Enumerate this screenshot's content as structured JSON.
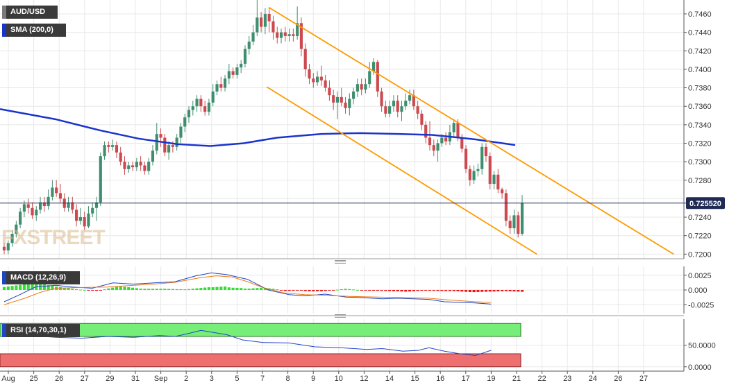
{
  "colors": {
    "up": "#3f8e6f",
    "down": "#cc4a4f",
    "sma": "#1a33cc",
    "channel": "#ff9a00",
    "macd": "#1f45c7",
    "signal": "#f07a18",
    "hist_up": "#33dd33",
    "hist_down": "#ee1111",
    "rsi": "#1f45c7",
    "rsi_upper": "#77ee77",
    "rsi_lower": "#ee6f6f",
    "price_line": "#1f2a55",
    "grid": "#e8e8e8"
  },
  "labels": {
    "symbol": "AUD/USD",
    "sma": "SMA (200,0)",
    "macd": "MACD (12,26,9)",
    "rsi": "RSI (14,70,30,1)",
    "price_tag": "0.725520",
    "watermark": "FXSTREET"
  },
  "chart_data": {
    "type": "candlestick",
    "price_axis": {
      "min": 0.7195,
      "max": 0.7475,
      "ticks": [
        "0.7200",
        "0.7220",
        "0.7240",
        "0.7260",
        "0.7280",
        "0.7300",
        "0.7320",
        "0.7340",
        "0.7360",
        "0.7380",
        "0.7400",
        "0.7420",
        "0.7440",
        "0.7460"
      ]
    },
    "macd_axis": {
      "min": -0.004,
      "max": 0.004,
      "ticks": [
        "0.0025",
        "0.000",
        "-0.0025"
      ]
    },
    "rsi_axis": {
      "min": -10,
      "max": 110,
      "ticks": [
        "50.0000",
        "0.0000"
      ]
    },
    "x_labels": [
      "Aug",
      "25",
      "26",
      "27",
      "29",
      "31",
      "Sep",
      "2",
      "3",
      "5",
      "7",
      "8",
      "9",
      "10",
      "12",
      "14",
      "15",
      "16",
      "17",
      "19",
      "21",
      "22",
      "23",
      "24",
      "26",
      "27"
    ],
    "last_price": 0.72552,
    "candles": [
      [
        0.7208,
        0.7204,
        0.7212,
        0.72
      ],
      [
        0.7204,
        0.7212,
        0.7215,
        0.72
      ],
      [
        0.7212,
        0.7222,
        0.7226,
        0.7208
      ],
      [
        0.7222,
        0.7232,
        0.7236,
        0.7218
      ],
      [
        0.7232,
        0.7246,
        0.725,
        0.7228
      ],
      [
        0.7246,
        0.7254,
        0.7258,
        0.724
      ],
      [
        0.7254,
        0.725,
        0.726,
        0.7244
      ],
      [
        0.725,
        0.7242,
        0.7256,
        0.7238
      ],
      [
        0.7242,
        0.7248,
        0.7252,
        0.7236
      ],
      [
        0.7248,
        0.7256,
        0.7262,
        0.7244
      ],
      [
        0.7256,
        0.7252,
        0.7262,
        0.7246
      ],
      [
        0.7252,
        0.7262,
        0.727,
        0.7248
      ],
      [
        0.7262,
        0.7272,
        0.728,
        0.7258
      ],
      [
        0.7272,
        0.7266,
        0.728,
        0.7262
      ],
      [
        0.7266,
        0.726,
        0.7276,
        0.7256
      ],
      [
        0.726,
        0.725,
        0.7266,
        0.7246
      ],
      [
        0.725,
        0.7256,
        0.7262,
        0.7246
      ],
      [
        0.7256,
        0.7248,
        0.7262,
        0.7244
      ],
      [
        0.7248,
        0.7236,
        0.7254,
        0.723
      ],
      [
        0.7236,
        0.724,
        0.725,
        0.7232
      ],
      [
        0.724,
        0.723,
        0.7246,
        0.7226
      ],
      [
        0.723,
        0.7244,
        0.7252,
        0.7228
      ],
      [
        0.7244,
        0.725,
        0.7256,
        0.724
      ],
      [
        0.725,
        0.7256,
        0.7262,
        0.7236
      ],
      [
        0.7256,
        0.7306,
        0.731,
        0.7252
      ],
      [
        0.7306,
        0.7318,
        0.7322,
        0.7302
      ],
      [
        0.7318,
        0.7316,
        0.7322,
        0.731
      ],
      [
        0.7316,
        0.7318,
        0.7324,
        0.7312
      ],
      [
        0.7318,
        0.731,
        0.7322,
        0.7304
      ],
      [
        0.731,
        0.73,
        0.7316,
        0.7296
      ],
      [
        0.73,
        0.7292,
        0.7306,
        0.7286
      ],
      [
        0.7292,
        0.7296,
        0.73,
        0.7288
      ],
      [
        0.7296,
        0.7294,
        0.73,
        0.729
      ],
      [
        0.7294,
        0.73,
        0.7304,
        0.729
      ],
      [
        0.73,
        0.7296,
        0.7306,
        0.729
      ],
      [
        0.7296,
        0.729,
        0.73,
        0.7286
      ],
      [
        0.729,
        0.73,
        0.7304,
        0.7286
      ],
      [
        0.73,
        0.7312,
        0.7318,
        0.7296
      ],
      [
        0.7312,
        0.733,
        0.7342,
        0.7308
      ],
      [
        0.733,
        0.7326,
        0.7336,
        0.7316
      ],
      [
        0.7326,
        0.731,
        0.733,
        0.7306
      ],
      [
        0.731,
        0.7318,
        0.7322,
        0.7302
      ],
      [
        0.7318,
        0.7316,
        0.7322,
        0.731
      ],
      [
        0.7316,
        0.7326,
        0.733,
        0.7312
      ],
      [
        0.7326,
        0.7338,
        0.7342,
        0.732
      ],
      [
        0.7338,
        0.7348,
        0.7352,
        0.7332
      ],
      [
        0.7348,
        0.7356,
        0.736,
        0.7342
      ],
      [
        0.7356,
        0.736,
        0.7366,
        0.735
      ],
      [
        0.736,
        0.7368,
        0.7372,
        0.7354
      ],
      [
        0.7368,
        0.736,
        0.7372,
        0.7354
      ],
      [
        0.736,
        0.7354,
        0.7366,
        0.735
      ],
      [
        0.7354,
        0.7364,
        0.7368,
        0.735
      ],
      [
        0.7364,
        0.7376,
        0.7384,
        0.736
      ],
      [
        0.7376,
        0.7384,
        0.7388,
        0.7372
      ],
      [
        0.7384,
        0.738,
        0.7392,
        0.7376
      ],
      [
        0.738,
        0.739,
        0.7394,
        0.7376
      ],
      [
        0.739,
        0.7398,
        0.7406,
        0.7384
      ],
      [
        0.7398,
        0.7394,
        0.7402,
        0.739
      ],
      [
        0.7394,
        0.7402,
        0.7406,
        0.739
      ],
      [
        0.7402,
        0.7406,
        0.741,
        0.7396
      ],
      [
        0.7406,
        0.7422,
        0.7426,
        0.7402
      ],
      [
        0.7422,
        0.743,
        0.7436,
        0.7416
      ],
      [
        0.743,
        0.744,
        0.7448,
        0.7426
      ],
      [
        0.744,
        0.7456,
        0.7476,
        0.7436
      ],
      [
        0.7456,
        0.7446,
        0.7462,
        0.744
      ],
      [
        0.7446,
        0.746,
        0.7466,
        0.7438
      ],
      [
        0.746,
        0.7452,
        0.7466,
        0.744
      ],
      [
        0.7452,
        0.744,
        0.7458,
        0.7432
      ],
      [
        0.744,
        0.7434,
        0.7446,
        0.7428
      ],
      [
        0.7434,
        0.744,
        0.7444,
        0.7428
      ],
      [
        0.744,
        0.7436,
        0.7446,
        0.743
      ],
      [
        0.7436,
        0.7438,
        0.7444,
        0.743
      ],
      [
        0.7438,
        0.7436,
        0.7444,
        0.743
      ],
      [
        0.7436,
        0.745,
        0.7468,
        0.7432
      ],
      [
        0.745,
        0.7422,
        0.7456,
        0.7414
      ],
      [
        0.7422,
        0.74,
        0.7428,
        0.7392
      ],
      [
        0.74,
        0.739,
        0.7406,
        0.7384
      ],
      [
        0.739,
        0.7386,
        0.7396,
        0.738
      ],
      [
        0.7386,
        0.7392,
        0.7398,
        0.7382
      ],
      [
        0.7392,
        0.7388,
        0.7404,
        0.7382
      ],
      [
        0.7388,
        0.738,
        0.7394,
        0.7376
      ],
      [
        0.738,
        0.7372,
        0.7388,
        0.7366
      ],
      [
        0.7372,
        0.7364,
        0.7378,
        0.7356
      ],
      [
        0.7364,
        0.737,
        0.7376,
        0.7346
      ],
      [
        0.737,
        0.7364,
        0.738,
        0.736
      ],
      [
        0.7364,
        0.7358,
        0.737,
        0.7352
      ],
      [
        0.7358,
        0.7368,
        0.7374,
        0.735
      ],
      [
        0.7368,
        0.7376,
        0.738,
        0.7362
      ],
      [
        0.7376,
        0.7384,
        0.739,
        0.737
      ],
      [
        0.7384,
        0.7378,
        0.739,
        0.7372
      ],
      [
        0.7378,
        0.7384,
        0.739,
        0.7374
      ],
      [
        0.7384,
        0.7398,
        0.7408,
        0.738
      ],
      [
        0.7398,
        0.7408,
        0.7412,
        0.7394
      ],
      [
        0.7408,
        0.7376,
        0.741,
        0.737
      ],
      [
        0.7376,
        0.736,
        0.738,
        0.7354
      ],
      [
        0.736,
        0.7352,
        0.7366,
        0.7348
      ],
      [
        0.7352,
        0.736,
        0.7366,
        0.7348
      ],
      [
        0.736,
        0.7366,
        0.7372,
        0.7354
      ],
      [
        0.7366,
        0.7354,
        0.7372,
        0.7348
      ],
      [
        0.7354,
        0.736,
        0.7366,
        0.7344
      ],
      [
        0.736,
        0.7366,
        0.7374,
        0.7356
      ],
      [
        0.7366,
        0.7372,
        0.7378,
        0.7362
      ],
      [
        0.7372,
        0.736,
        0.7378,
        0.7356
      ],
      [
        0.736,
        0.7352,
        0.7366,
        0.7346
      ],
      [
        0.7352,
        0.734,
        0.7356,
        0.7334
      ],
      [
        0.734,
        0.7326,
        0.7344,
        0.732
      ],
      [
        0.7326,
        0.7318,
        0.7344,
        0.7312
      ],
      [
        0.7318,
        0.7312,
        0.7324,
        0.7306
      ],
      [
        0.7312,
        0.732,
        0.7324,
        0.73
      ],
      [
        0.732,
        0.7326,
        0.733,
        0.7316
      ],
      [
        0.7326,
        0.7322,
        0.7332,
        0.7318
      ],
      [
        0.7322,
        0.7332,
        0.734,
        0.7318
      ],
      [
        0.7332,
        0.7342,
        0.7346,
        0.7326
      ],
      [
        0.7342,
        0.7326,
        0.7346,
        0.7322
      ],
      [
        0.7326,
        0.7314,
        0.733,
        0.731
      ],
      [
        0.7314,
        0.7292,
        0.7318,
        0.7288
      ],
      [
        0.7292,
        0.728,
        0.7296,
        0.7274
      ],
      [
        0.728,
        0.729,
        0.7296,
        0.7276
      ],
      [
        0.729,
        0.7292,
        0.7298,
        0.7284
      ],
      [
        0.7292,
        0.7316,
        0.732,
        0.7286
      ],
      [
        0.7316,
        0.7306,
        0.732,
        0.73
      ],
      [
        0.7306,
        0.7276,
        0.731,
        0.727
      ],
      [
        0.7276,
        0.7286,
        0.729,
        0.727
      ],
      [
        0.7286,
        0.727,
        0.7292,
        0.7266
      ],
      [
        0.727,
        0.7266,
        0.7272,
        0.726
      ],
      [
        0.7266,
        0.7236,
        0.727,
        0.723
      ],
      [
        0.7236,
        0.7228,
        0.7242,
        0.7222
      ],
      [
        0.7228,
        0.7242,
        0.7248,
        0.7222
      ],
      [
        0.7242,
        0.7222,
        0.7246,
        0.7218
      ],
      [
        0.7222,
        0.72552,
        0.7264,
        0.722
      ]
    ],
    "sma200": [
      [
        0.7357,
        0
      ],
      [
        0.7346,
        0.1
      ],
      [
        0.7334,
        0.18
      ],
      [
        0.7325,
        0.25
      ],
      [
        0.7319,
        0.32
      ],
      [
        0.7317,
        0.38
      ],
      [
        0.732,
        0.44
      ],
      [
        0.7326,
        0.5
      ],
      [
        0.733,
        0.58
      ],
      [
        0.7331,
        0.65
      ],
      [
        0.733,
        0.72
      ],
      [
        0.7329,
        0.78
      ],
      [
        0.7326,
        0.83
      ],
      [
        0.7324,
        0.86
      ],
      [
        0.7318,
        0.93
      ]
    ],
    "channel_upper": [
      [
        0.7467,
        0.393
      ],
      [
        0.72,
        0.985
      ]
    ],
    "channel_lower": [
      [
        0.7381,
        0.39
      ],
      [
        0.72,
        0.785
      ]
    ],
    "macd": [
      [
        -0.002,
        0
      ],
      [
        -0.0008,
        0.03
      ],
      [
        0.0005,
        0.06
      ],
      [
        0.0008,
        0.1
      ],
      [
        0.0005,
        0.13
      ],
      [
        0.0003,
        0.17
      ],
      [
        0.0012,
        0.21
      ],
      [
        0.001,
        0.25
      ],
      [
        0.0012,
        0.29
      ],
      [
        0.0014,
        0.33
      ],
      [
        0.0024,
        0.37
      ],
      [
        0.0029,
        0.4
      ],
      [
        0.0026,
        0.43
      ],
      [
        0.0018,
        0.47
      ],
      [
        0.0,
        0.51
      ],
      [
        -0.0008,
        0.55
      ],
      [
        -0.001,
        0.58
      ],
      [
        -0.0007,
        0.62
      ],
      [
        -0.0012,
        0.66
      ],
      [
        -0.0013,
        0.69
      ],
      [
        -0.0015,
        0.73
      ],
      [
        -0.0014,
        0.76
      ],
      [
        -0.0015,
        0.79
      ],
      [
        -0.0016,
        0.82
      ],
      [
        -0.002,
        0.85
      ],
      [
        -0.0021,
        0.88
      ],
      [
        -0.0022,
        0.91
      ],
      [
        -0.0024,
        0.94
      ]
    ],
    "signal": [
      [
        -0.0025,
        0
      ],
      [
        -0.0014,
        0.04
      ],
      [
        -0.0004,
        0.07
      ],
      [
        0.0003,
        0.1
      ],
      [
        0.0004,
        0.14
      ],
      [
        0.0005,
        0.2
      ],
      [
        0.0008,
        0.25
      ],
      [
        0.001,
        0.29
      ],
      [
        0.0013,
        0.33
      ],
      [
        0.0021,
        0.38
      ],
      [
        0.0024,
        0.41
      ],
      [
        0.0022,
        0.44
      ],
      [
        0.0014,
        0.47
      ],
      [
        0.0004,
        0.5
      ],
      [
        -0.0005,
        0.54
      ],
      [
        -0.0008,
        0.58
      ],
      [
        -0.0009,
        0.62
      ],
      [
        -0.0011,
        0.67
      ],
      [
        -0.0012,
        0.72
      ],
      [
        -0.0013,
        0.77
      ],
      [
        -0.0014,
        0.82
      ],
      [
        -0.0017,
        0.86
      ],
      [
        -0.002,
        0.91
      ],
      [
        -0.0021,
        0.94
      ]
    ],
    "rsi": [
      [
        70,
        0
      ],
      [
        72,
        0.05
      ],
      [
        68,
        0.1
      ],
      [
        66,
        0.15
      ],
      [
        70,
        0.2
      ],
      [
        68,
        0.25
      ],
      [
        72,
        0.3
      ],
      [
        70,
        0.33
      ],
      [
        78,
        0.36
      ],
      [
        84,
        0.38
      ],
      [
        80,
        0.4
      ],
      [
        74,
        0.43
      ],
      [
        62,
        0.46
      ],
      [
        56,
        0.5
      ],
      [
        55,
        0.55
      ],
      [
        46,
        0.6
      ],
      [
        44,
        0.65
      ],
      [
        40,
        0.7
      ],
      [
        42,
        0.73
      ],
      [
        36,
        0.77
      ],
      [
        38,
        0.8
      ],
      [
        44,
        0.82
      ],
      [
        36,
        0.85
      ],
      [
        30,
        0.88
      ],
      [
        26,
        0.91
      ],
      [
        38,
        0.94
      ]
    ]
  }
}
